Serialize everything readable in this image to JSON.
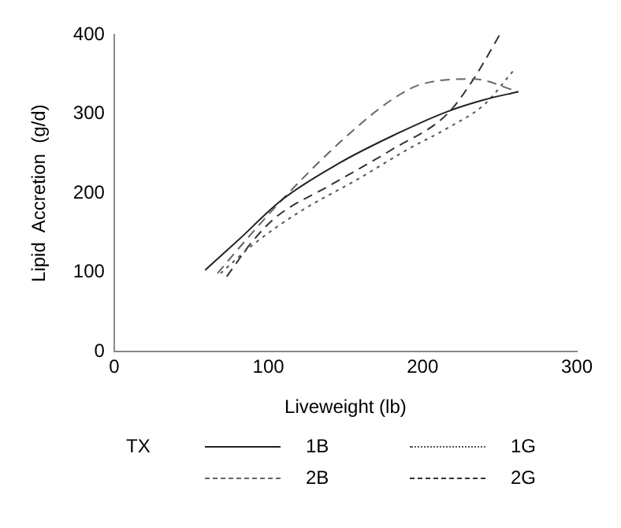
{
  "chart_data": {
    "type": "line",
    "xlabel": "Liveweight (lb)",
    "ylabel": "Lipid  Accretion  (g/d)",
    "legend_title": "TX",
    "legend": "bottom",
    "grid": false,
    "marker": "none",
    "xlim": [
      0,
      300
    ],
    "xticks": [
      0,
      100,
      200,
      300
    ],
    "ylim": [
      0,
      400
    ],
    "yticks": [
      0,
      100,
      200,
      300,
      400
    ],
    "series": [
      {
        "name": "1B",
        "color": "#222222",
        "line_style": "solid",
        "x": [
          59,
          80,
          109,
          146,
          180,
          216,
          240,
          262
        ],
        "values": [
          103,
          140,
          192,
          238,
          272,
          303,
          318,
          328
        ]
      },
      {
        "name": "1G",
        "color": "#555555",
        "line_style": "dotted",
        "x": [
          69,
          90,
          119,
          160,
          190,
          216,
          240,
          259
        ],
        "values": [
          99,
          135,
          175,
          220,
          255,
          282,
          312,
          355
        ]
      },
      {
        "name": "2B",
        "color": "#666666",
        "line_style": "dashed",
        "x": [
          67,
          85,
          109,
          149,
          180,
          200,
          233,
          262
        ],
        "values": [
          99,
          140,
          192,
          269,
          318,
          338,
          344,
          328
        ]
      },
      {
        "name": "2G",
        "color": "#333333",
        "line_style": "dashed",
        "x": [
          73,
          90,
          105,
          140,
          180,
          216,
          233,
          250
        ],
        "values": [
          95,
          140,
          170,
          210,
          255,
          300,
          344,
          400
        ]
      }
    ]
  }
}
